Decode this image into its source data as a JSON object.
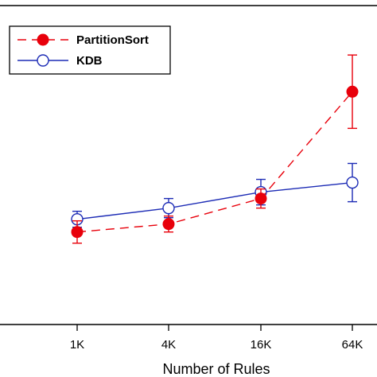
{
  "chart_data": {
    "type": "line",
    "title": "",
    "xlabel": "Number of Rules",
    "ylabel": "",
    "categories": [
      "1K",
      "4K",
      "16K",
      "64K"
    ],
    "ylim": [
      0,
      100
    ],
    "grid": false,
    "legend_position": "top-left",
    "series": [
      {
        "name": "PartitionSort",
        "color": "#e8000b",
        "line_style": "dashed",
        "marker": "filled-circle",
        "values": [
          29,
          31.5,
          39.5,
          73
        ],
        "error": [
          3.5,
          2.5,
          3,
          11.5
        ]
      },
      {
        "name": "KDB",
        "color": "#1c2bb5",
        "line_style": "solid",
        "marker": "open-circle",
        "values": [
          33,
          36.5,
          41.5,
          44.5
        ],
        "error": [
          2.5,
          3,
          4,
          6
        ]
      }
    ]
  }
}
